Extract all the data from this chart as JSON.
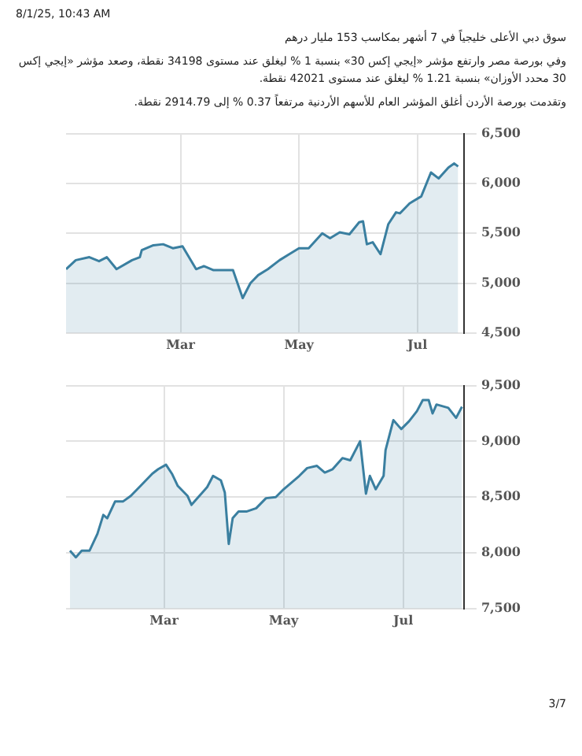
{
  "chart_data": [
    {
      "type": "area",
      "annotations": [
        "8/1/25, 10:43 AM",
        "سوق دبي الأعلى خليجياً في 7 أشهر بمكاسب 153 مليار درهم",
        "وفي بورصة مصر وارتفع مؤشر «إيجي إكس 30» بنسبة 1 % ليغلق عند مستوى 34198 نقطة، وصعد مؤشر «إيجي إكس 30 محدد الأوزان» بنسبة 1.21 % ليغلق عند مستوى 42021 نقطة.",
        "وتقدمت بورصة الأردن أغلق المؤشر العام للأسهم الأردنية مرتفعاً 0.37 % إلى 2914.79 نقطة."
      ],
      "x": [
        "--01-01",
        "--01-06",
        "--01-13",
        "--01-18",
        "--01-22",
        "--01-27",
        "--02-04",
        "--02-08",
        "--02-09",
        "--02-15",
        "--02-20",
        "--02-25",
        "--03-02",
        "--03-09",
        "--03-13",
        "--03-18",
        "--03-28",
        "--04-02",
        "--04-06",
        "--04-10",
        "--04-15",
        "--04-21",
        "--04-26",
        "--05-01",
        "--05-06",
        "--05-13",
        "--05-17",
        "--05-22",
        "--05-27",
        "--06-01",
        "--06-03",
        "--06-05",
        "--06-08",
        "--06-12",
        "--06-16",
        "--06-20",
        "--06-22",
        "--06-27",
        "--07-03",
        "--07-08",
        "--07-12",
        "--07-17",
        "--07-20",
        "--07-22"
      ],
      "series": [
        {
          "color": "#3a7fa0",
          "values": [
            5140,
            5230,
            5260,
            5220,
            5260,
            5140,
            5230,
            5260,
            5330,
            5380,
            5390,
            5350,
            5370,
            5140,
            5170,
            5130,
            5130,
            4850,
            5000,
            5080,
            5140,
            5230,
            5290,
            5350,
            5350,
            5500,
            5450,
            5510,
            5490,
            5610,
            5620,
            5390,
            5410,
            5290,
            5590,
            5710,
            5700,
            5800,
            5870,
            6110,
            6050,
            6160,
            6200,
            6170
          ]
        }
      ],
      "xlim": [
        "--01-01",
        "--07-25"
      ],
      "xticks": [
        {
          "value": "--03-01",
          "label": "Mar"
        },
        {
          "value": "--05-01",
          "label": "May"
        },
        {
          "value": "--07-01",
          "label": "Jul"
        }
      ],
      "ylim": [
        4500,
        6500
      ],
      "yticks": [
        {
          "value": 4500,
          "label": "4,500"
        },
        {
          "value": 5000,
          "label": "5,000"
        },
        {
          "value": 5500,
          "label": "5,500"
        },
        {
          "value": 6000,
          "label": "6,000"
        },
        {
          "value": 6500,
          "label": "6,500"
        }
      ],
      "grid": true,
      "legend": false
    },
    {
      "type": "area",
      "annotations": [
        "3/7"
      ],
      "x": [
        "--01-12",
        "--01-15",
        "--01-18",
        "--01-22",
        "--01-26",
        "--01-29",
        "--01-31",
        "--02-04",
        "--02-08",
        "--02-12",
        "--02-17",
        "--02-23",
        "--02-26",
        "--03-02",
        "--03-05",
        "--03-08",
        "--03-13",
        "--03-15",
        "--03-19",
        "--03-23",
        "--03-26",
        "--03-30",
        "--04-01",
        "--04-03",
        "--04-05",
        "--04-08",
        "--04-12",
        "--04-17",
        "--04-22",
        "--04-27",
        "--05-01",
        "--05-05",
        "--05-09",
        "--05-13",
        "--05-18",
        "--05-22",
        "--05-26",
        "--05-31",
        "--06-04",
        "--06-09",
        "--06-12",
        "--06-14",
        "--06-17",
        "--06-21",
        "--06-22",
        "--06-26",
        "--06-30",
        "--07-04",
        "--07-08",
        "--07-11",
        "--07-14",
        "--07-16",
        "--07-18",
        "--07-24",
        "--07-28",
        "--07-31"
      ],
      "series": [
        {
          "color": "#3a7fa0",
          "values": [
            8020,
            7960,
            8020,
            8020,
            8170,
            8340,
            8310,
            8460,
            8460,
            8510,
            8600,
            8710,
            8750,
            8790,
            8710,
            8600,
            8510,
            8430,
            8510,
            8590,
            8690,
            8650,
            8540,
            8080,
            8310,
            8370,
            8370,
            8400,
            8490,
            8500,
            8570,
            8630,
            8690,
            8760,
            8780,
            8720,
            8750,
            8850,
            8830,
            9000,
            8530,
            8690,
            8570,
            8690,
            8920,
            9190,
            9110,
            9180,
            9270,
            9370,
            9370,
            9250,
            9330,
            9300,
            9210,
            9310
          ]
        }
      ],
      "xlim": [
        "--01-10",
        "--08-01"
      ],
      "xticks": [
        {
          "value": "--03-01",
          "label": "Mar"
        },
        {
          "value": "--05-01",
          "label": "May"
        },
        {
          "value": "--07-01",
          "label": "Jul"
        }
      ],
      "ylim": [
        7500,
        9500
      ],
      "yticks": [
        {
          "value": 7500,
          "label": "7,500"
        },
        {
          "value": 8000,
          "label": "8,000"
        },
        {
          "value": 8500,
          "label": "8,500"
        },
        {
          "value": 9000,
          "label": "9,000"
        },
        {
          "value": 9500,
          "label": "9,500"
        }
      ],
      "grid": true,
      "legend": false
    }
  ]
}
